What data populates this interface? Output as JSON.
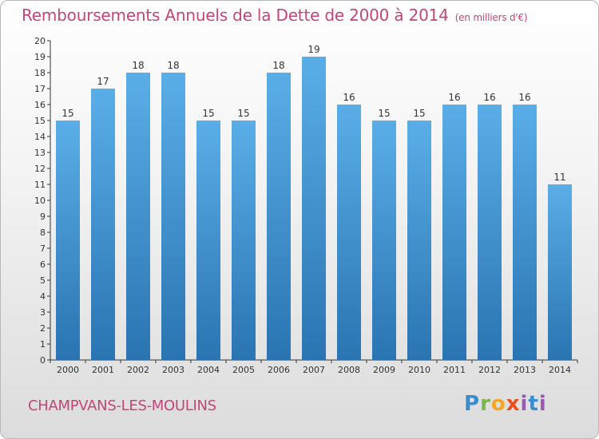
{
  "title": "Remboursements Annuels de la Dette de 2000 à 2014",
  "subtitle": "(en milliers d'€)",
  "commune": "CHAMPVANS-LES-MOULINS",
  "logo": {
    "text": "Proxiti"
  },
  "colors": {
    "title": "#c4457a",
    "bar_top": "#5aaee8",
    "bar_bottom": "#2a74b2"
  },
  "chart_data": {
    "type": "bar",
    "categories": [
      "2000",
      "2001",
      "2002",
      "2003",
      "2004",
      "2005",
      "2006",
      "2007",
      "2008",
      "2009",
      "2010",
      "2011",
      "2012",
      "2013",
      "2014"
    ],
    "values": [
      15,
      17,
      18,
      18,
      15,
      15,
      18,
      19,
      16,
      15,
      15,
      16,
      16,
      16,
      11
    ],
    "ylim": [
      0,
      20
    ],
    "yticks": [
      0,
      1,
      2,
      3,
      4,
      5,
      6,
      7,
      8,
      9,
      10,
      11,
      12,
      13,
      14,
      15,
      16,
      17,
      18,
      19,
      20
    ],
    "grid": false,
    "data_labels": true
  }
}
